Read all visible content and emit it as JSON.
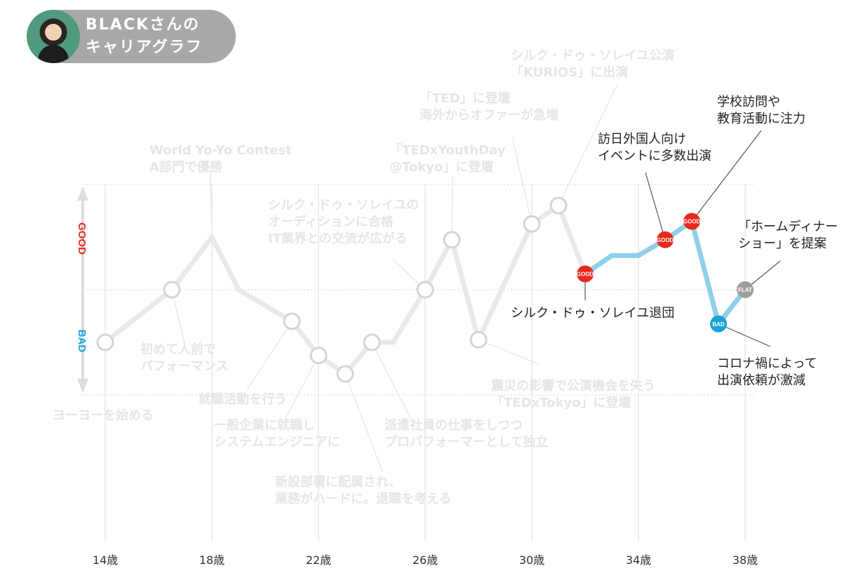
{
  "header": {
    "title": "BLACKさんの\nキャリアグラフ"
  },
  "colors": {
    "good": "#e8291c",
    "bad": "#19a1d6",
    "flat": "#9e9e9e",
    "line_recent": "#8fd0e8",
    "line_past": "#e9e9e9"
  },
  "chart_data": {
    "type": "line",
    "title": "BLACKさんのキャリアグラフ",
    "x_unit": "歳",
    "xlim": [
      12,
      40
    ],
    "ylim": [
      -4,
      4
    ],
    "x_ticks": [
      {
        "value": 14,
        "label": "14歳"
      },
      {
        "value": 18,
        "label": "18歳"
      },
      {
        "value": 22,
        "label": "22歳"
      },
      {
        "value": 26,
        "label": "26歳"
      },
      {
        "value": 30,
        "label": "30歳"
      },
      {
        "value": 34,
        "label": "34歳"
      },
      {
        "value": 38,
        "label": "38歳"
      }
    ],
    "y_axis": {
      "top": "GOOD",
      "bottom": "BAD"
    },
    "grid": true,
    "series": [
      {
        "points": [
          {
            "x": 14,
            "y": -2,
            "marker": "open"
          },
          {
            "x": 16.5,
            "y": 0,
            "marker": "open"
          },
          {
            "x": 18,
            "y": 2
          },
          {
            "x": 19,
            "y": 0
          },
          {
            "x": 21,
            "y": -1.2,
            "marker": "open"
          },
          {
            "x": 22,
            "y": -2.5,
            "marker": "open"
          },
          {
            "x": 23,
            "y": -3.2,
            "marker": "open"
          },
          {
            "x": 24,
            "y": -2,
            "marker": "open"
          },
          {
            "x": 24.8,
            "y": -2
          },
          {
            "x": 26,
            "y": 0,
            "marker": "open"
          },
          {
            "x": 27,
            "y": 1.9,
            "marker": "open"
          },
          {
            "x": 28,
            "y": -1.9,
            "marker": "open"
          },
          {
            "x": 30,
            "y": 2.5,
            "marker": "open"
          },
          {
            "x": 31,
            "y": 3.2,
            "marker": "open"
          },
          {
            "x": 32,
            "y": 0.6,
            "marker": "GOOD"
          },
          {
            "x": 33,
            "y": 1.3
          },
          {
            "x": 34,
            "y": 1.3
          },
          {
            "x": 35,
            "y": 1.9,
            "marker": "GOOD"
          },
          {
            "x": 36,
            "y": 2.6,
            "marker": "GOOD"
          },
          {
            "x": 37,
            "y": -1.3,
            "marker": "BAD"
          },
          {
            "x": 38,
            "y": 0,
            "marker": "FLAT"
          }
        ]
      }
    ],
    "annotations_past": [
      "ヨーヨーを始める",
      "初めて人前で\nパフォーマンス",
      "World Yo-Yo Contest\nA部門で優勝",
      "就職活動を行う",
      "一般企業に就職し\nシステムエンジニアに",
      "新設部署に配属され、\n業務がハードに。退職を考える",
      "派遣社員の仕事をしつつ\nプロパフォーマーとして独立",
      "シルク・ドゥ・ソレイユの\nオーディションに合格\nIT業界との交流が広がる",
      "「TEDxYouthDay\n@Tokyo」に登壇",
      "「TED」に登壇\n海外からオファーが急増",
      "震災の影響で公演機会を失う\n「TEDxTokyo」に登壇",
      "シルク・ドゥ・ソレイユ公演\n「KURIOS」に出演"
    ],
    "annotations_recent": [
      "シルク・ドゥ・ソレイユ退団",
      "訪日外国人向け\nイベントに多数出演",
      "学校訪問や\n教育活動に注力",
      "コロナ禍によって\n出演依頼が激減",
      "「ホームディナー\nショー」を提案"
    ]
  }
}
